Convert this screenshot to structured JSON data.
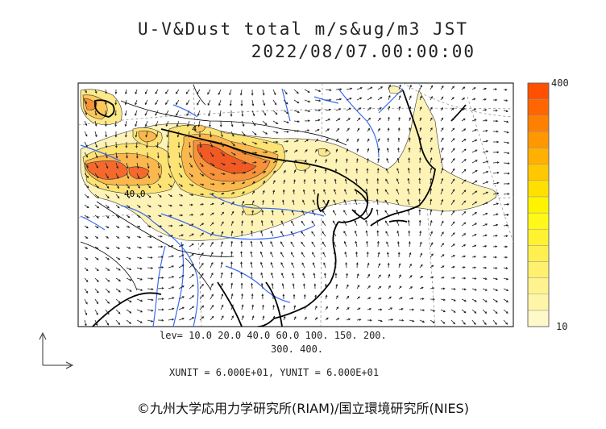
{
  "header": {
    "title_line1": "U-V&Dust total m/s&ug/m3 JST",
    "title_line2": "2022/08/07.00:00:00"
  },
  "contour_labels": [
    "40.0",
    "4"
  ],
  "colorbar": {
    "max_label": "400",
    "min_label": "10",
    "colors": [
      "#fff8c8",
      "#fff5a8",
      "#fff390",
      "#fff070",
      "#fff050",
      "#fff230",
      "#fff818",
      "#fff400",
      "#ffe000",
      "#ffc800",
      "#ffb000",
      "#ff9800",
      "#ff8000",
      "#ff6600",
      "#ff5000"
    ]
  },
  "legend": {
    "levels_line1": "lev= 10.0 20.0 40.0 60.0 100. 150. 200.",
    "levels_line2": "300. 400.",
    "units": "XUNIT = 6.000E+01, YUNIT = 6.000E+01"
  },
  "credit": "©九州大学応用力学研究所(RIAM)/国立環境研究所(NIES)"
}
